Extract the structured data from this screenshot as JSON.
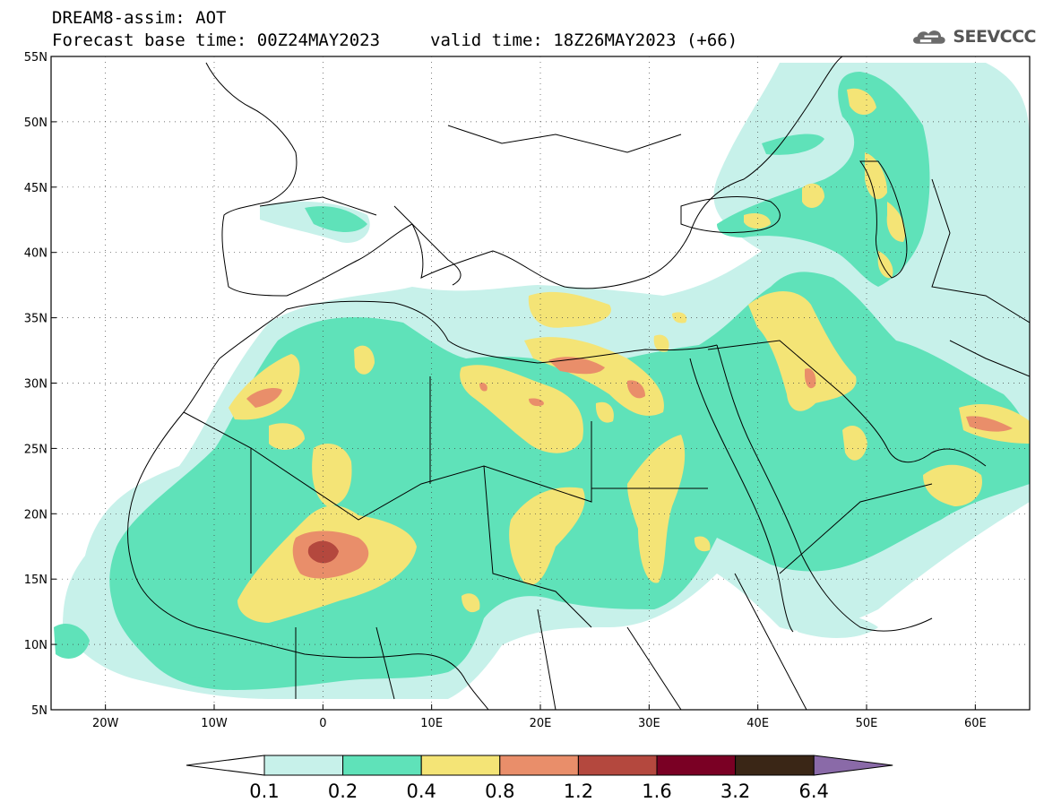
{
  "header": {
    "title": "DREAM8-assim: AOT",
    "base_time": "Forecast base time: 00Z24MAY2023",
    "valid_time": "valid time: 18Z26MAY2023 (+66)",
    "logo_text": "SEEVCCC"
  },
  "axes": {
    "lat_labels": [
      "55N",
      "50N",
      "45N",
      "40N",
      "35N",
      "30N",
      "25N",
      "20N",
      "15N",
      "10N",
      "5N"
    ],
    "lon_labels": [
      "20W",
      "10W",
      "0",
      "10E",
      "20E",
      "30E",
      "40E",
      "50E",
      "60E"
    ]
  },
  "colorbar": {
    "labels": [
      "0.1",
      "0.2",
      "0.4",
      "0.8",
      "1.2",
      "1.6",
      "3.2",
      "6.4"
    ],
    "colors": [
      "#ffffff",
      "#c7f1ea",
      "#5fe2b9",
      "#f4e476",
      "#e98e6a",
      "#b4483e",
      "#7a0024",
      "#3a2616",
      "#8a6aa8"
    ]
  },
  "palette": {
    "c1": "#c7f1ea",
    "c2": "#5fe2b9",
    "c3": "#f4e476",
    "c4": "#e98e6a",
    "c5": "#b4483e"
  }
}
